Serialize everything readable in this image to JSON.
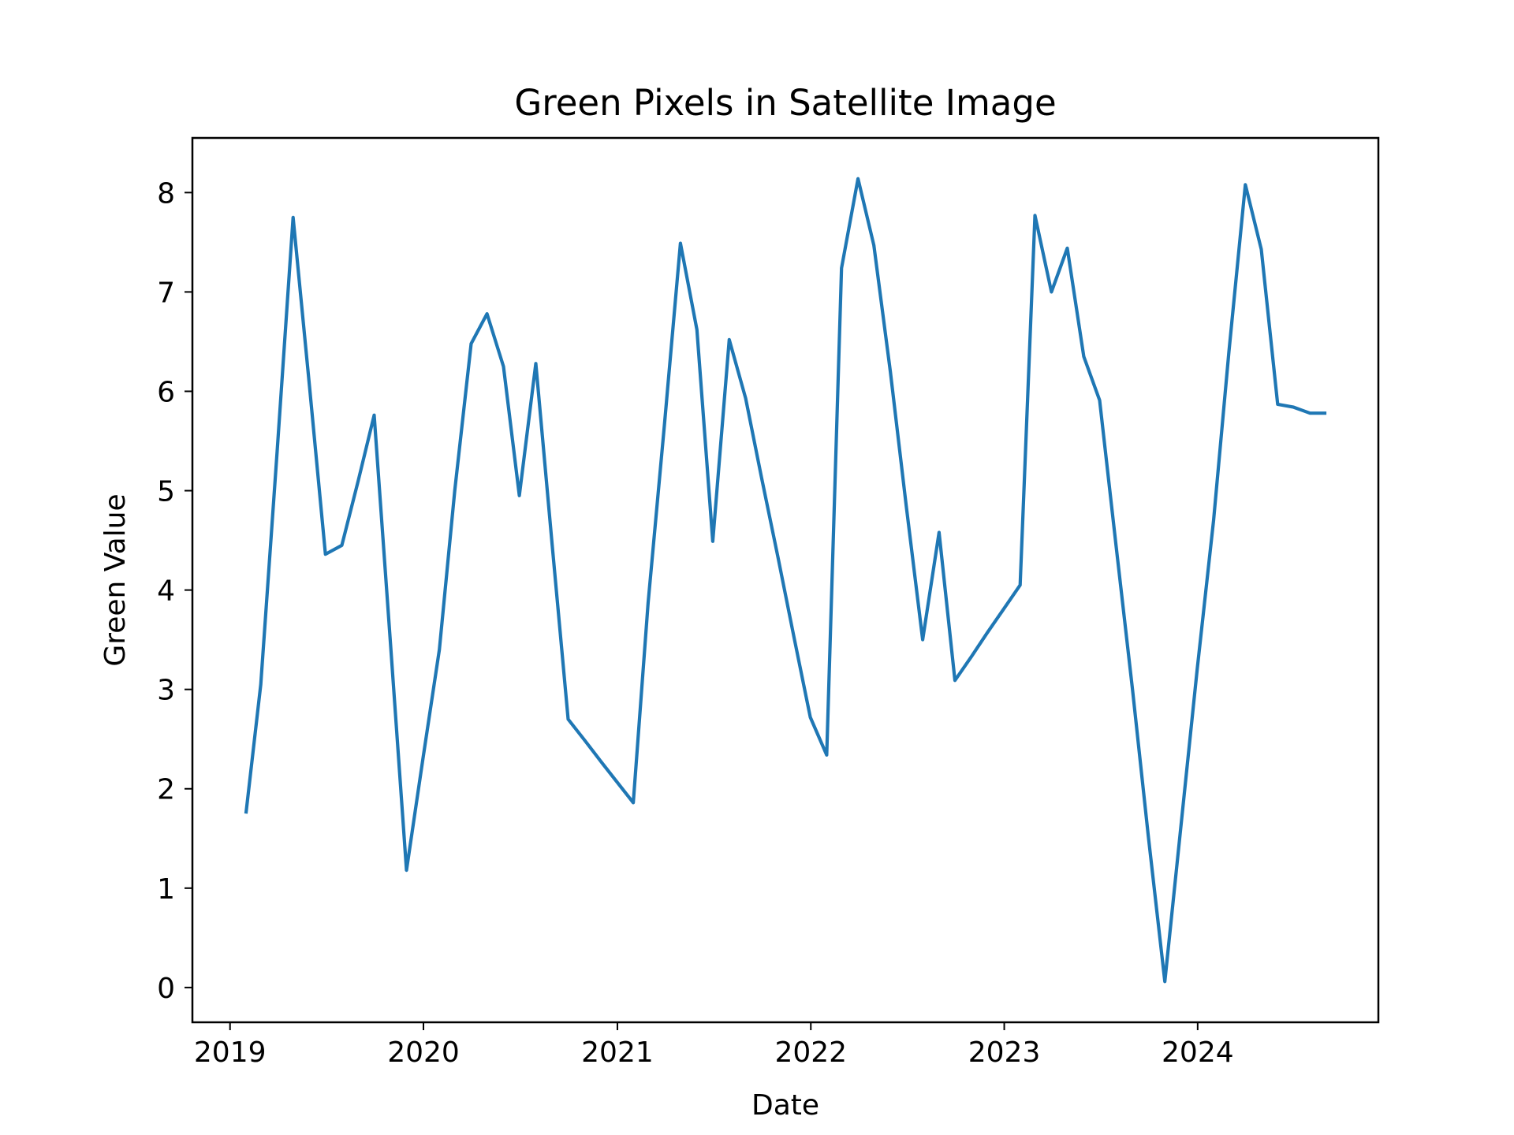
{
  "chart_data": {
    "type": "line",
    "title": "Green Pixels in Satellite Image",
    "xlabel": "Date",
    "ylabel": "Green Value",
    "x_ticks": [
      "2019",
      "2020",
      "2021",
      "2022",
      "2023",
      "2024"
    ],
    "y_ticks": [
      "0",
      "1",
      "2",
      "3",
      "4",
      "5",
      "6",
      "7",
      "8"
    ],
    "xlim": [
      "2018-10-22",
      "2024-12-07"
    ],
    "ylim": [
      -0.35,
      8.55
    ],
    "grid": false,
    "line_color": "#1f77b4",
    "series": [
      {
        "x": [
          "2019-01-31",
          "2019-02-28",
          "2019-03-31",
          "2019-04-30",
          "2019-05-31",
          "2019-06-30",
          "2019-07-31",
          "2019-08-31",
          "2019-09-30",
          "2019-10-31",
          "2019-11-30",
          "2019-12-31",
          "2020-01-31",
          "2020-02-29",
          "2020-03-31",
          "2020-04-30",
          "2020-05-31",
          "2020-06-30",
          "2020-07-31",
          "2020-08-31",
          "2020-09-30",
          "2020-10-31",
          "2020-11-30",
          "2020-12-31",
          "2021-01-31",
          "2021-02-28",
          "2021-03-31",
          "2021-04-30",
          "2021-05-31",
          "2021-06-30",
          "2021-07-31",
          "2021-08-31",
          "2021-09-30",
          "2021-10-31",
          "2021-11-30",
          "2021-12-31",
          "2022-01-31",
          "2022-02-28",
          "2022-03-31",
          "2022-04-30",
          "2022-05-31",
          "2022-06-30",
          "2022-07-31",
          "2022-08-31",
          "2022-09-30",
          "2022-10-31",
          "2022-11-30",
          "2022-12-31",
          "2023-01-31",
          "2023-02-28",
          "2023-03-31",
          "2023-04-30",
          "2023-05-31",
          "2023-06-30",
          "2023-07-31",
          "2023-08-31",
          "2023-09-30",
          "2023-10-31",
          "2023-11-30",
          "2023-12-31",
          "2024-01-31",
          "2024-02-29",
          "2024-03-31",
          "2024-04-30",
          "2024-05-31",
          "2024-06-30",
          "2024-07-31",
          "2024-08-31"
        ],
        "y": [
          1.75,
          3.05,
          5.4,
          7.75,
          6.05,
          4.36,
          4.45,
          5.1,
          5.76,
          3.45,
          1.18,
          2.3,
          3.4,
          5.0,
          6.48,
          6.78,
          6.25,
          4.95,
          6.28,
          4.45,
          2.7,
          2.49,
          2.28,
          2.07,
          1.86,
          3.87,
          5.68,
          7.49,
          6.62,
          4.49,
          6.52,
          5.93,
          5.13,
          4.33,
          3.53,
          2.72,
          2.34,
          7.24,
          8.14,
          7.47,
          6.2,
          4.85,
          3.5,
          4.58,
          3.09,
          3.33,
          3.57,
          3.81,
          4.05,
          7.77,
          7.0,
          7.44,
          6.35,
          5.91,
          4.45,
          3.0,
          1.52,
          0.06,
          1.6,
          3.2,
          4.7,
          6.4,
          8.08,
          7.43,
          5.87,
          5.84,
          5.78,
          5.78
        ]
      }
    ]
  }
}
